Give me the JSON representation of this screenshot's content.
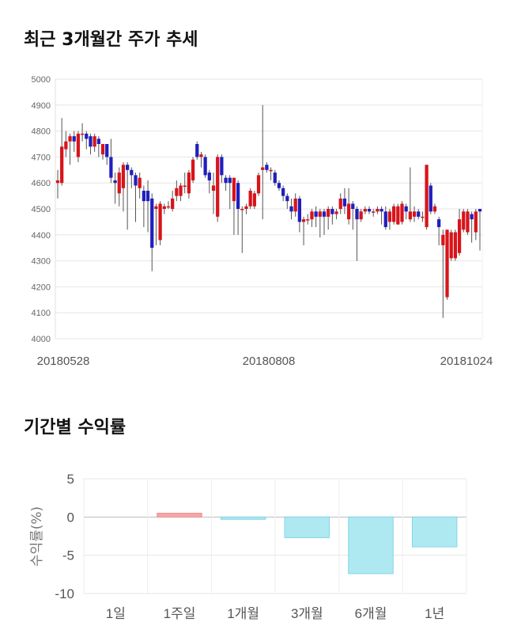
{
  "titles": {
    "price_trend": "최근 3개월간 주가 추세",
    "returns": "기간별 수익률"
  },
  "chart_data": [
    {
      "type": "candlestick",
      "title": "최근 3개월간 주가 추세",
      "ylim": [
        4000,
        5000
      ],
      "yticks": [
        4000,
        4100,
        4200,
        4300,
        4400,
        4500,
        4600,
        4700,
        4800,
        4900,
        5000
      ],
      "xtick_labels": [
        "20180528",
        "20180808",
        "20181024"
      ],
      "grid": true,
      "colors": {
        "up": "#d8141b",
        "down": "#1f1fbf",
        "wick": "#555555"
      },
      "candles": [
        {
          "o": 4600,
          "c": 4610,
          "h": 4650,
          "l": 4540
        },
        {
          "o": 4600,
          "c": 4740,
          "h": 4850,
          "l": 4590
        },
        {
          "o": 4730,
          "c": 4760,
          "h": 4800,
          "l": 4700
        },
        {
          "o": 4760,
          "c": 4780,
          "h": 4790,
          "l": 4670
        },
        {
          "o": 4780,
          "c": 4760,
          "h": 4800,
          "l": 4720
        },
        {
          "o": 4700,
          "c": 4790,
          "h": 4800,
          "l": 4680
        },
        {
          "o": 4790,
          "c": 4790,
          "h": 4830,
          "l": 4760
        },
        {
          "o": 4790,
          "c": 4770,
          "h": 4800,
          "l": 4730
        },
        {
          "o": 4780,
          "c": 4740,
          "h": 4790,
          "l": 4710
        },
        {
          "o": 4740,
          "c": 4780,
          "h": 4790,
          "l": 4720
        },
        {
          "o": 4770,
          "c": 4750,
          "h": 4780,
          "l": 4700
        },
        {
          "o": 4710,
          "c": 4750,
          "h": 4750,
          "l": 4690
        },
        {
          "o": 4750,
          "c": 4700,
          "h": 4750,
          "l": 4670
        },
        {
          "o": 4700,
          "c": 4620,
          "h": 4770,
          "l": 4600
        },
        {
          "o": 4610,
          "c": 4600,
          "h": 4640,
          "l": 4520
        },
        {
          "o": 4560,
          "c": 4640,
          "h": 4660,
          "l": 4510
        },
        {
          "o": 4580,
          "c": 4670,
          "h": 4680,
          "l": 4490
        },
        {
          "o": 4670,
          "c": 4650,
          "h": 4680,
          "l": 4420
        },
        {
          "o": 4650,
          "c": 4630,
          "h": 4660,
          "l": 4580
        },
        {
          "o": 4630,
          "c": 4590,
          "h": 4640,
          "l": 4450
        },
        {
          "o": 4580,
          "c": 4620,
          "h": 4640,
          "l": 4540
        },
        {
          "o": 4570,
          "c": 4530,
          "h": 4590,
          "l": 4430
        },
        {
          "o": 4570,
          "c": 4530,
          "h": 4610,
          "l": 4410
        },
        {
          "o": 4540,
          "c": 4350,
          "h": 4560,
          "l": 4260
        },
        {
          "o": 4500,
          "c": 4510,
          "h": 4520,
          "l": 4360
        },
        {
          "o": 4380,
          "c": 4520,
          "h": 4530,
          "l": 4360
        },
        {
          "o": 4500,
          "c": 4510,
          "h": 4520,
          "l": 4480
        },
        {
          "o": 4510,
          "c": 4510,
          "h": 4530,
          "l": 4500
        },
        {
          "o": 4500,
          "c": 4540,
          "h": 4570,
          "l": 4490
        },
        {
          "o": 4550,
          "c": 4580,
          "h": 4610,
          "l": 4530
        },
        {
          "o": 4550,
          "c": 4590,
          "h": 4600,
          "l": 4530
        },
        {
          "o": 4590,
          "c": 4590,
          "h": 4640,
          "l": 4560
        },
        {
          "o": 4560,
          "c": 4640,
          "h": 4650,
          "l": 4540
        },
        {
          "o": 4610,
          "c": 4690,
          "h": 4700,
          "l": 4600
        },
        {
          "o": 4750,
          "c": 4700,
          "h": 4760,
          "l": 4690
        },
        {
          "o": 4700,
          "c": 4710,
          "h": 4720,
          "l": 4660
        },
        {
          "o": 4700,
          "c": 4630,
          "h": 4710,
          "l": 4620
        },
        {
          "o": 4640,
          "c": 4610,
          "h": 4650,
          "l": 4560
        },
        {
          "o": 4570,
          "c": 4590,
          "h": 4640,
          "l": 4480
        },
        {
          "o": 4470,
          "c": 4700,
          "h": 4710,
          "l": 4450
        },
        {
          "o": 4700,
          "c": 4630,
          "h": 4710,
          "l": 4600
        },
        {
          "o": 4620,
          "c": 4600,
          "h": 4630,
          "l": 4570
        },
        {
          "o": 4620,
          "c": 4600,
          "h": 4630,
          "l": 4500
        },
        {
          "o": 4530,
          "c": 4620,
          "h": 4620,
          "l": 4400
        },
        {
          "o": 4600,
          "c": 4500,
          "h": 4610,
          "l": 4400
        },
        {
          "o": 4500,
          "c": 4500,
          "h": 4510,
          "l": 4330
        },
        {
          "o": 4500,
          "c": 4510,
          "h": 4520,
          "l": 4480
        },
        {
          "o": 4510,
          "c": 4570,
          "h": 4580,
          "l": 4500
        },
        {
          "o": 4510,
          "c": 4560,
          "h": 4570,
          "l": 4500
        },
        {
          "o": 4560,
          "c": 4630,
          "h": 4640,
          "l": 4550
        },
        {
          "o": 4650,
          "c": 4660,
          "h": 4900,
          "l": 4460
        },
        {
          "o": 4670,
          "c": 4650,
          "h": 4680,
          "l": 4640
        },
        {
          "o": 4650,
          "c": 4650,
          "h": 4660,
          "l": 4610
        },
        {
          "o": 4640,
          "c": 4600,
          "h": 4650,
          "l": 4590
        },
        {
          "o": 4600,
          "c": 4580,
          "h": 4610,
          "l": 4570
        },
        {
          "o": 4580,
          "c": 4550,
          "h": 4590,
          "l": 4530
        },
        {
          "o": 4550,
          "c": 4530,
          "h": 4560,
          "l": 4500
        },
        {
          "o": 4510,
          "c": 4490,
          "h": 4540,
          "l": 4460
        },
        {
          "o": 4490,
          "c": 4540,
          "h": 4560,
          "l": 4470
        },
        {
          "o": 4540,
          "c": 4450,
          "h": 4550,
          "l": 4410
        },
        {
          "o": 4450,
          "c": 4460,
          "h": 4470,
          "l": 4360
        },
        {
          "o": 4460,
          "c": 4460,
          "h": 4480,
          "l": 4440
        },
        {
          "o": 4460,
          "c": 4490,
          "h": 4500,
          "l": 4430
        },
        {
          "o": 4490,
          "c": 4470,
          "h": 4510,
          "l": 4430
        },
        {
          "o": 4470,
          "c": 4490,
          "h": 4500,
          "l": 4390
        },
        {
          "o": 4490,
          "c": 4470,
          "h": 4500,
          "l": 4400
        },
        {
          "o": 4470,
          "c": 4500,
          "h": 4510,
          "l": 4420
        },
        {
          "o": 4500,
          "c": 4480,
          "h": 4510,
          "l": 4440
        },
        {
          "o": 4480,
          "c": 4490,
          "h": 4500,
          "l": 4460
        },
        {
          "o": 4500,
          "c": 4540,
          "h": 4560,
          "l": 4480
        },
        {
          "o": 4540,
          "c": 4510,
          "h": 4580,
          "l": 4480
        },
        {
          "o": 4460,
          "c": 4520,
          "h": 4580,
          "l": 4440
        },
        {
          "o": 4520,
          "c": 4500,
          "h": 4530,
          "l": 4420
        },
        {
          "o": 4500,
          "c": 4460,
          "h": 4510,
          "l": 4300
        },
        {
          "o": 4460,
          "c": 4490,
          "h": 4500,
          "l": 4450
        },
        {
          "o": 4490,
          "c": 4500,
          "h": 4510,
          "l": 4480
        },
        {
          "o": 4500,
          "c": 4490,
          "h": 4510,
          "l": 4480
        },
        {
          "o": 4490,
          "c": 4490,
          "h": 4500,
          "l": 4470
        },
        {
          "o": 4490,
          "c": 4500,
          "h": 4510,
          "l": 4480
        },
        {
          "o": 4500,
          "c": 4490,
          "h": 4510,
          "l": 4440
        },
        {
          "o": 4490,
          "c": 4430,
          "h": 4510,
          "l": 4420
        },
        {
          "o": 4450,
          "c": 4490,
          "h": 4500,
          "l": 4420
        },
        {
          "o": 4450,
          "c": 4510,
          "h": 4520,
          "l": 4440
        },
        {
          "o": 4440,
          "c": 4510,
          "h": 4520,
          "l": 4440
        },
        {
          "o": 4450,
          "c": 4520,
          "h": 4530,
          "l": 4440
        },
        {
          "o": 4510,
          "c": 4490,
          "h": 4520,
          "l": 4460
        },
        {
          "o": 4460,
          "c": 4490,
          "h": 4660,
          "l": 4450
        },
        {
          "o": 4470,
          "c": 4490,
          "h": 4510,
          "l": 4450
        },
        {
          "o": 4490,
          "c": 4470,
          "h": 4500,
          "l": 4460
        },
        {
          "o": 4470,
          "c": 4470,
          "h": 4490,
          "l": 4450
        },
        {
          "o": 4430,
          "c": 4670,
          "h": 4670,
          "l": 4420
        },
        {
          "o": 4590,
          "c": 4490,
          "h": 4600,
          "l": 4480
        },
        {
          "o": 4490,
          "c": 4510,
          "h": 4520,
          "l": 4480
        },
        {
          "o": 4460,
          "c": 4430,
          "h": 4470,
          "l": 4360
        },
        {
          "o": 4360,
          "c": 4400,
          "h": 4420,
          "l": 4080
        },
        {
          "o": 4160,
          "c": 4420,
          "h": 4420,
          "l": 4150
        },
        {
          "o": 4310,
          "c": 4410,
          "h": 4420,
          "l": 4300
        },
        {
          "o": 4310,
          "c": 4410,
          "h": 4420,
          "l": 4300
        },
        {
          "o": 4330,
          "c": 4460,
          "h": 4500,
          "l": 4320
        },
        {
          "o": 4420,
          "c": 4490,
          "h": 4500,
          "l": 4410
        },
        {
          "o": 4410,
          "c": 4490,
          "h": 4500,
          "l": 4400
        },
        {
          "o": 4480,
          "c": 4460,
          "h": 4490,
          "l": 4370
        },
        {
          "o": 4410,
          "c": 4490,
          "h": 4500,
          "l": 4380
        },
        {
          "o": 4500,
          "c": 4490,
          "h": 4500,
          "l": 4340
        }
      ]
    },
    {
      "type": "bar",
      "title": "기간별 수익률",
      "ylabel": "수익률(%)",
      "ylim": [
        -10,
        5
      ],
      "yticks": [
        5,
        0,
        -5,
        -10
      ],
      "categories": [
        "1일",
        "1주일",
        "1개월",
        "3개월",
        "6개월",
        "1년"
      ],
      "values": [
        0,
        0.5,
        -0.3,
        -2.7,
        -7.4,
        -3.9
      ],
      "colors": {
        "positive": "#f4a8a8",
        "negative": "#aee9f2",
        "negative_edge": "#7fd6e6",
        "positive_edge": "#ee8f8f"
      },
      "grid": true
    }
  ]
}
